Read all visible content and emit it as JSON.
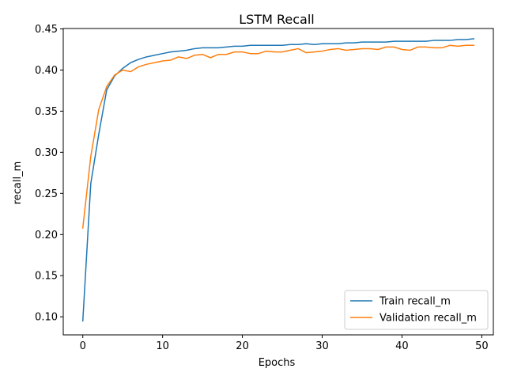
{
  "chart_data": {
    "type": "line",
    "title": "LSTM Recall",
    "xlabel": "Epochs",
    "ylabel": "recall_m",
    "xlim": [
      -2.45,
      51.45
    ],
    "ylim": [
      0.078,
      0.4505
    ],
    "xticks": [
      0,
      10,
      20,
      30,
      40,
      50
    ],
    "yticks": [
      0.1,
      0.15,
      0.2,
      0.25,
      0.3,
      0.35,
      0.4,
      0.45
    ],
    "grid": false,
    "legend_position": "lower-right",
    "x": [
      0,
      1,
      2,
      3,
      4,
      5,
      6,
      7,
      8,
      9,
      10,
      11,
      12,
      13,
      14,
      15,
      16,
      17,
      18,
      19,
      20,
      21,
      22,
      23,
      24,
      25,
      26,
      27,
      28,
      29,
      30,
      31,
      32,
      33,
      34,
      35,
      36,
      37,
      38,
      39,
      40,
      41,
      42,
      43,
      44,
      45,
      46,
      47,
      48,
      49
    ],
    "series": [
      {
        "name": "Train recall_m",
        "color": "#1f77b4",
        "values": [
          0.095,
          0.262,
          0.322,
          0.376,
          0.393,
          0.402,
          0.409,
          0.413,
          0.416,
          0.418,
          0.42,
          0.422,
          0.423,
          0.424,
          0.426,
          0.427,
          0.427,
          0.427,
          0.428,
          0.429,
          0.429,
          0.43,
          0.43,
          0.43,
          0.43,
          0.43,
          0.431,
          0.431,
          0.432,
          0.431,
          0.432,
          0.432,
          0.432,
          0.433,
          0.433,
          0.434,
          0.434,
          0.434,
          0.434,
          0.435,
          0.435,
          0.435,
          0.435,
          0.435,
          0.436,
          0.436,
          0.436,
          0.437,
          0.437,
          0.438
        ]
      },
      {
        "name": "Validation recall_m",
        "color": "#ff7f0e",
        "values": [
          0.208,
          0.295,
          0.352,
          0.38,
          0.394,
          0.4,
          0.398,
          0.404,
          0.407,
          0.409,
          0.411,
          0.412,
          0.416,
          0.414,
          0.418,
          0.419,
          0.415,
          0.419,
          0.419,
          0.422,
          0.422,
          0.42,
          0.42,
          0.423,
          0.422,
          0.422,
          0.424,
          0.426,
          0.421,
          0.422,
          0.423,
          0.425,
          0.426,
          0.424,
          0.425,
          0.426,
          0.426,
          0.425,
          0.428,
          0.428,
          0.425,
          0.424,
          0.428,
          0.428,
          0.427,
          0.427,
          0.43,
          0.429,
          0.43,
          0.43
        ]
      }
    ]
  }
}
